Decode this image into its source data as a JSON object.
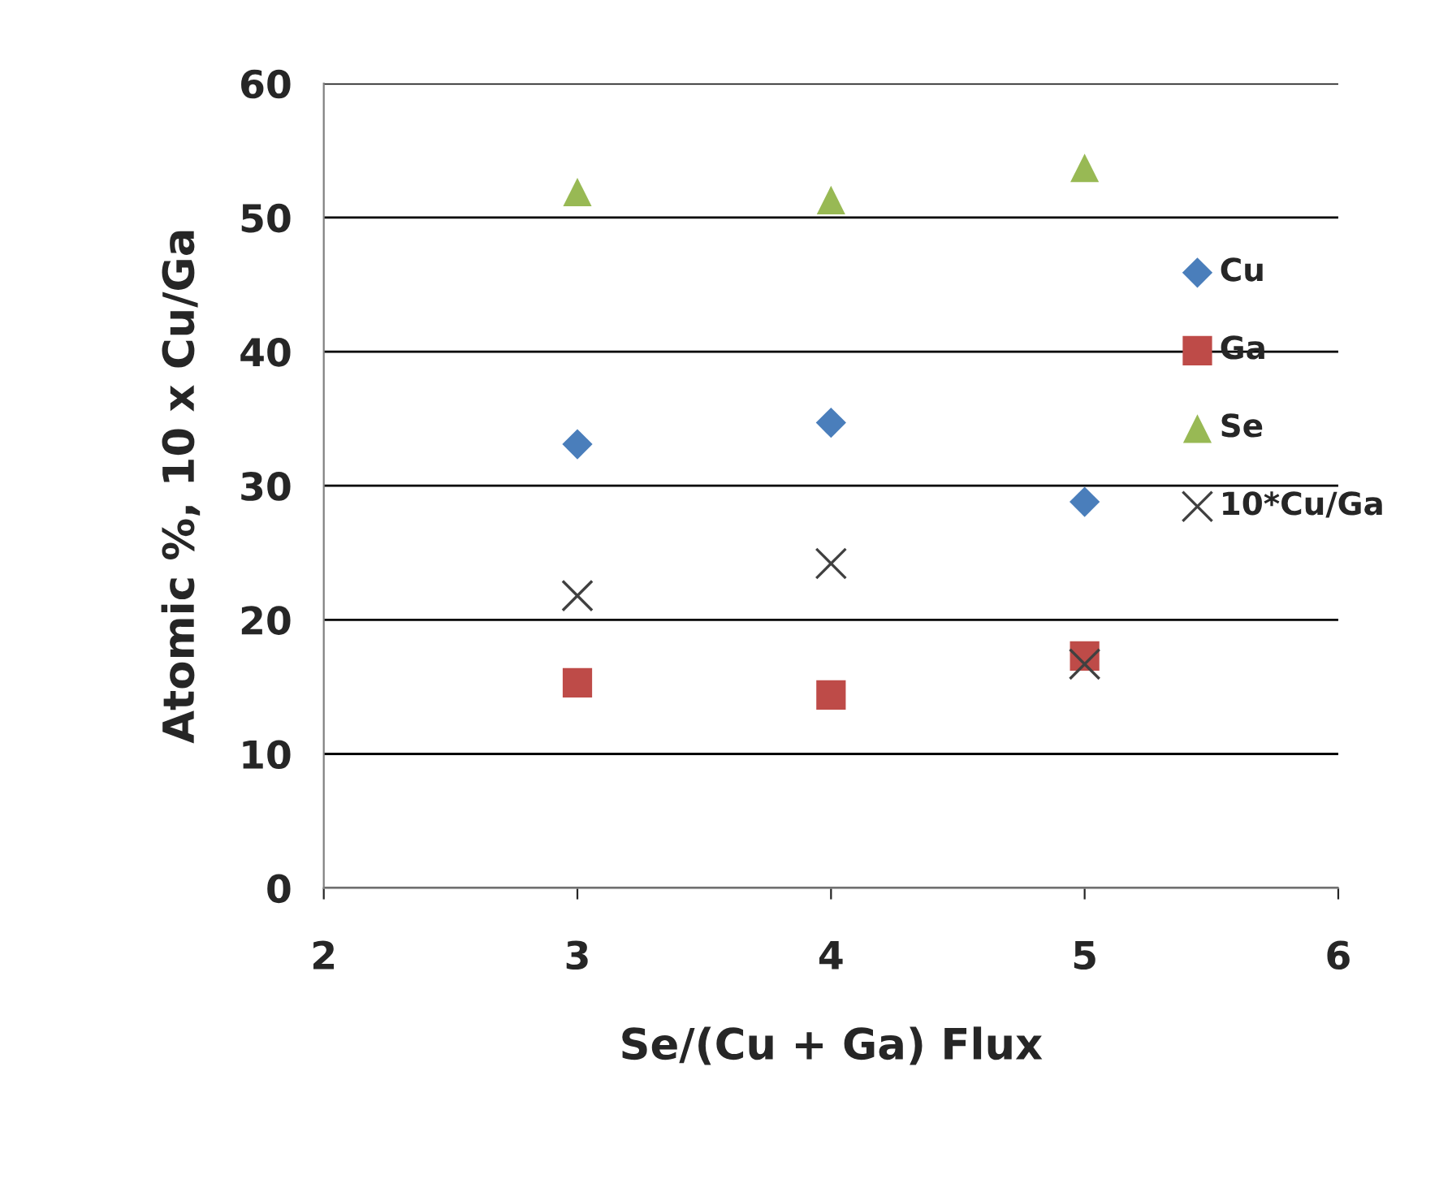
{
  "chart_data": {
    "type": "scatter",
    "xlabel": "Se/(Cu + Ga) Flux",
    "ylabel": "Atomic %, 10 x Cu/Ga",
    "x": [
      3,
      4,
      5
    ],
    "series": [
      {
        "name": "Cu",
        "color": "#4a7ebb",
        "marker": "diamond",
        "values": [
          33.1,
          34.7,
          28.8
        ]
      },
      {
        "name": "Ga",
        "color": "#be4b48",
        "marker": "square",
        "values": [
          15.3,
          14.4,
          17.3
        ]
      },
      {
        "name": "Se",
        "color": "#98b954",
        "marker": "triangle",
        "values": [
          51.9,
          51.3,
          53.7
        ]
      },
      {
        "name": "10*Cu/Ga",
        "color": "#404040",
        "marker": "cross",
        "values": [
          21.8,
          24.2,
          16.7
        ]
      }
    ],
    "xlim": [
      2,
      6
    ],
    "xticks": [
      2,
      3,
      4,
      5,
      6
    ],
    "ylim": [
      0,
      60
    ],
    "yticks": [
      0,
      10,
      20,
      30,
      40,
      50,
      60
    ],
    "grid": "y",
    "legend": "right"
  }
}
